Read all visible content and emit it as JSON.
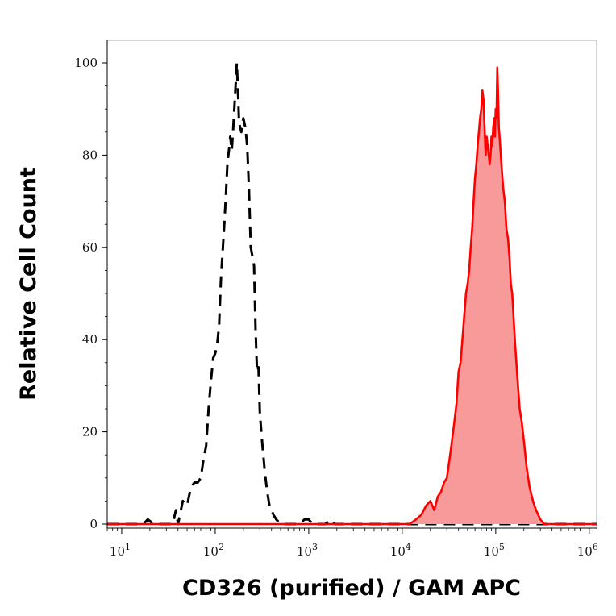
{
  "chart_data": {
    "type": "area",
    "title": "",
    "xlabel": "CD326 (purified) / GAM APC",
    "ylabel": "Relative Cell Count",
    "x_scale": "log",
    "xlim": [
      7,
      1200000
    ],
    "ylim": [
      0,
      100
    ],
    "grid": false,
    "x_ticks": [
      {
        "base": "10",
        "exp": "1",
        "value": 10
      },
      {
        "base": "10",
        "exp": "2",
        "value": 100
      },
      {
        "base": "10",
        "exp": "3",
        "value": 1000
      },
      {
        "base": "10",
        "exp": "4",
        "value": 10000
      },
      {
        "base": "10",
        "exp": "5",
        "value": 100000
      },
      {
        "base": "10",
        "exp": "6",
        "value": 1000000
      }
    ],
    "y_ticks": [
      {
        "label": "0",
        "value": 0
      },
      {
        "label": "20",
        "value": 20
      },
      {
        "label": "40",
        "value": 40
      },
      {
        "label": "60",
        "value": 60
      },
      {
        "label": "80",
        "value": 80
      },
      {
        "label": "100",
        "value": 100
      }
    ],
    "series": [
      {
        "style": "dashed-line",
        "color": "#000000",
        "points": [
          [
            7,
            0
          ],
          [
            17,
            0
          ],
          [
            19,
            1
          ],
          [
            22,
            0
          ],
          [
            35,
            0
          ],
          [
            38,
            3
          ],
          [
            40,
            0
          ],
          [
            45,
            5
          ],
          [
            50,
            4
          ],
          [
            55,
            8
          ],
          [
            60,
            9
          ],
          [
            65,
            9
          ],
          [
            70,
            10
          ],
          [
            75,
            14
          ],
          [
            80,
            17
          ],
          [
            85,
            25
          ],
          [
            90,
            31
          ],
          [
            95,
            36
          ],
          [
            100,
            37
          ],
          [
            105,
            39
          ],
          [
            110,
            43
          ],
          [
            115,
            53
          ],
          [
            120,
            59
          ],
          [
            125,
            65
          ],
          [
            130,
            71
          ],
          [
            135,
            78
          ],
          [
            140,
            81
          ],
          [
            145,
            84
          ],
          [
            150,
            81
          ],
          [
            155,
            85
          ],
          [
            160,
            90
          ],
          [
            165,
            95
          ],
          [
            170,
            100
          ],
          [
            175,
            94
          ],
          [
            180,
            87
          ],
          [
            190,
            85
          ],
          [
            200,
            88
          ],
          [
            210,
            86
          ],
          [
            220,
            82
          ],
          [
            230,
            72
          ],
          [
            240,
            60
          ],
          [
            250,
            58
          ],
          [
            260,
            56
          ],
          [
            270,
            42
          ],
          [
            280,
            33
          ],
          [
            290,
            34
          ],
          [
            300,
            24
          ],
          [
            320,
            17
          ],
          [
            340,
            11
          ],
          [
            360,
            7
          ],
          [
            380,
            4
          ],
          [
            400,
            3
          ],
          [
            420,
            2
          ],
          [
            450,
            1
          ],
          [
            500,
            0
          ],
          [
            800,
            0
          ],
          [
            900,
            1
          ],
          [
            1000,
            1
          ],
          [
            1100,
            0
          ],
          [
            1500,
            0
          ],
          [
            1700,
            1
          ],
          [
            1900,
            0
          ],
          [
            100000,
            0
          ],
          [
            120000,
            0
          ],
          [
            200000,
            0
          ],
          [
            1200000,
            0
          ]
        ]
      },
      {
        "style": "filled-area",
        "color": "#ff0000",
        "fill": "#f89a9a",
        "points": [
          [
            7,
            0
          ],
          [
            12000,
            0
          ],
          [
            14000,
            1
          ],
          [
            16000,
            2
          ],
          [
            18000,
            4
          ],
          [
            20000,
            5
          ],
          [
            22000,
            3
          ],
          [
            24000,
            6
          ],
          [
            26000,
            7
          ],
          [
            28000,
            9
          ],
          [
            30000,
            10
          ],
          [
            32000,
            14
          ],
          [
            34000,
            18
          ],
          [
            36000,
            22
          ],
          [
            38000,
            26
          ],
          [
            40000,
            33
          ],
          [
            42000,
            35
          ],
          [
            44000,
            40
          ],
          [
            46000,
            45
          ],
          [
            48000,
            50
          ],
          [
            50000,
            52
          ],
          [
            52000,
            55
          ],
          [
            54000,
            60
          ],
          [
            56000,
            64
          ],
          [
            58000,
            70
          ],
          [
            60000,
            75
          ],
          [
            62000,
            78
          ],
          [
            64000,
            82
          ],
          [
            66000,
            85
          ],
          [
            68000,
            88
          ],
          [
            70000,
            90
          ],
          [
            72000,
            94
          ],
          [
            74000,
            92
          ],
          [
            76000,
            86
          ],
          [
            78000,
            80
          ],
          [
            80000,
            84
          ],
          [
            82000,
            82
          ],
          [
            84000,
            80
          ],
          [
            86000,
            78
          ],
          [
            88000,
            80
          ],
          [
            90000,
            84
          ],
          [
            92000,
            82
          ],
          [
            94000,
            86
          ],
          [
            96000,
            88
          ],
          [
            98000,
            84
          ],
          [
            100000,
            90
          ],
          [
            102000,
            88
          ],
          [
            104000,
            99
          ],
          [
            106000,
            93
          ],
          [
            108000,
            86
          ],
          [
            110000,
            84
          ],
          [
            115000,
            78
          ],
          [
            120000,
            73
          ],
          [
            125000,
            70
          ],
          [
            130000,
            64
          ],
          [
            135000,
            62
          ],
          [
            140000,
            58
          ],
          [
            145000,
            52
          ],
          [
            150000,
            50
          ],
          [
            160000,
            40
          ],
          [
            170000,
            32
          ],
          [
            180000,
            25
          ],
          [
            190000,
            22
          ],
          [
            200000,
            18
          ],
          [
            215000,
            12
          ],
          [
            230000,
            8
          ],
          [
            250000,
            5
          ],
          [
            270000,
            3
          ],
          [
            300000,
            1
          ],
          [
            330000,
            0
          ],
          [
            1200000,
            0
          ]
        ]
      }
    ]
  }
}
